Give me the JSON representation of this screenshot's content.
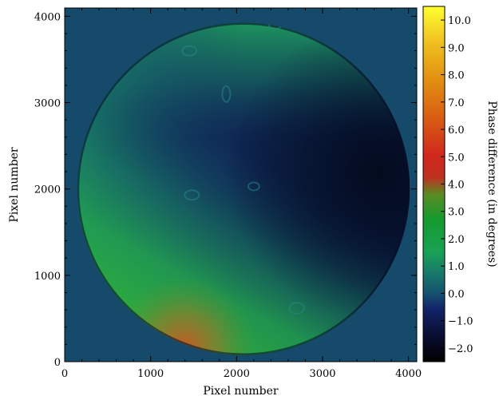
{
  "chart_data": {
    "type": "heatmap",
    "xlabel": "Pixel number",
    "ylabel": "Pixel number",
    "xlim": [
      0,
      4096
    ],
    "ylim": [
      0,
      4096
    ],
    "x_ticks": [
      0,
      1000,
      2000,
      3000,
      4000
    ],
    "y_ticks": [
      0,
      1000,
      2000,
      3000,
      4000
    ],
    "disk": {
      "center_x": 2080,
      "center_y": 2000,
      "radius": 1930
    },
    "colorbar": {
      "label": "Phase difference (in degrees)",
      "range": [
        -2.5,
        10.5
      ],
      "ticks": [
        -2.0,
        -1.0,
        0.0,
        1.0,
        2.0,
        3.0,
        4.0,
        5.0,
        6.0,
        7.0,
        8.0,
        9.0,
        10.0
      ],
      "tick_labels": [
        "−2.0",
        "−1.0",
        "0.0",
        "1.0",
        "2.0",
        "3.0",
        "4.0",
        "5.0",
        "6.0",
        "7.0",
        "8.0",
        "9.0",
        "10.0"
      ]
    },
    "background_value": 0.0,
    "field_description_values": {
      "top_left_max": 1.6,
      "center": -1.0,
      "right_min": -1.8,
      "bottom_left_max": 5.5
    },
    "colors": {
      "background": "#164a6b",
      "low": "#000000",
      "mid": "#1e8f48",
      "high": "#ffff30"
    }
  }
}
